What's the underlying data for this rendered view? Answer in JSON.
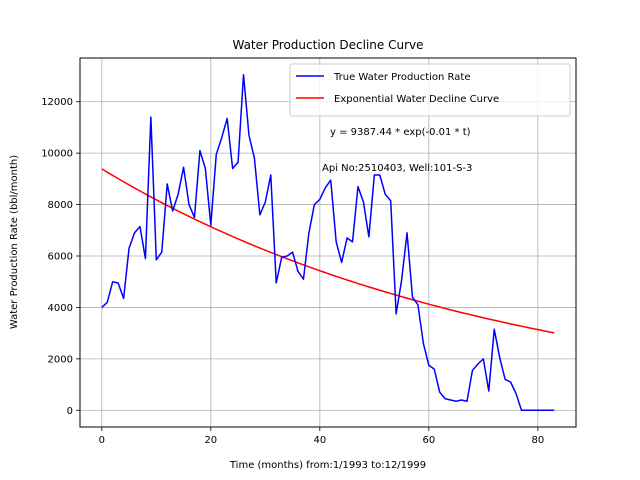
{
  "chart_data": {
    "type": "line",
    "title": "Water Production Decline Curve",
    "xlabel": "Time (months) from:1/1993 to:12/1999",
    "ylabel": "Water Production Rate (bbl/month)",
    "xlim": [
      -4,
      87
    ],
    "ylim": [
      -650,
      13700
    ],
    "xticks": [
      0,
      20,
      40,
      60,
      80
    ],
    "yticks": [
      0,
      2000,
      4000,
      6000,
      8000,
      10000,
      12000
    ],
    "grid": true,
    "legend_position": "top-right",
    "annotations": [
      "y = 9387.44 * exp(-0.01 * t)",
      "Api No:2510403, Well:101-S-3"
    ],
    "series": [
      {
        "name": "True Water Production Rate",
        "color": "#0000ff",
        "x": [
          0,
          1,
          2,
          3,
          4,
          5,
          6,
          7,
          8,
          9,
          10,
          11,
          12,
          13,
          14,
          15,
          16,
          17,
          18,
          19,
          20,
          21,
          22,
          23,
          24,
          25,
          26,
          27,
          28,
          29,
          30,
          31,
          32,
          33,
          34,
          35,
          36,
          37,
          38,
          39,
          40,
          41,
          42,
          43,
          44,
          45,
          46,
          47,
          48,
          49,
          50,
          51,
          52,
          53,
          54,
          55,
          56,
          57,
          58,
          59,
          60,
          61,
          62,
          63,
          64,
          65,
          66,
          67,
          68,
          69,
          70,
          71,
          72,
          73,
          74,
          75,
          76,
          77,
          78,
          79,
          80,
          81,
          82,
          83
        ],
        "y": [
          4000,
          4200,
          5000,
          4950,
          4350,
          6300,
          6900,
          7150,
          5900,
          11400,
          5850,
          6150,
          8800,
          7750,
          8400,
          9450,
          8000,
          7500,
          10100,
          9400,
          7200,
          9950,
          10600,
          11350,
          9400,
          9650,
          13050,
          10700,
          9800,
          7600,
          8100,
          9150,
          4950,
          5950,
          6000,
          6150,
          5400,
          5100,
          6900,
          8000,
          8200,
          8650,
          8950,
          6550,
          5750,
          6700,
          6550,
          8700,
          8100,
          6750,
          9150,
          9150,
          8400,
          8150,
          3750,
          5050,
          6900,
          4400,
          4100,
          2600,
          1750,
          1600,
          700,
          450,
          400,
          350,
          400,
          350,
          1550,
          1800,
          2000,
          750,
          3150,
          2050,
          1200,
          1100,
          650,
          0,
          0,
          0,
          0,
          0,
          0,
          0
        ]
      },
      {
        "name": "Exponential Water Decline Curve",
        "color": "#ff0000",
        "fit": {
          "a": 9387.44,
          "b": -0.0137,
          "x_start": 0,
          "x_end": 83
        }
      }
    ]
  }
}
